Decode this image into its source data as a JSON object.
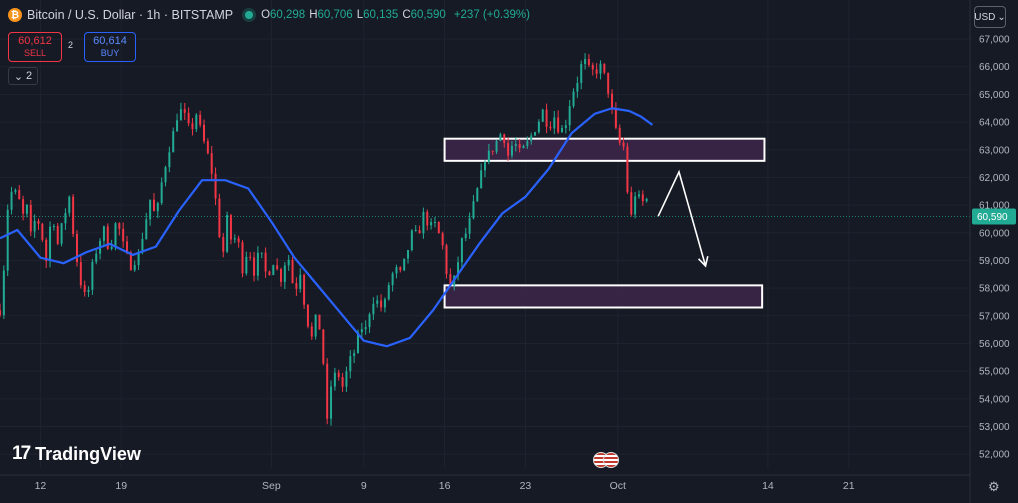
{
  "header": {
    "coin_glyph": "₿",
    "symbol": "Bitcoin / U.S. Dollar · 1h · BITSTAMP",
    "ohlc": {
      "o_label": "O",
      "o": "60,298",
      "h_label": "H",
      "h": "60,706",
      "l_label": "L",
      "l": "60,135",
      "c_label": "C",
      "c": "60,590"
    },
    "change": "+237 (+0.39%)",
    "status_color": "#22ab94"
  },
  "trade": {
    "sell_price": "60,612",
    "sell_label": "SELL",
    "spread": "2",
    "buy_price": "60,614",
    "buy_label": "BUY"
  },
  "indicators": {
    "count": "2",
    "icon": "chevron-down-icon"
  },
  "currency": {
    "label": "USD",
    "icon": "chevron-down-icon"
  },
  "logo": {
    "mark": "17",
    "text": "TradingView"
  },
  "chart_data": {
    "type": "candlestick",
    "interval": "1h",
    "y_ticks": [
      52000,
      53000,
      54000,
      55000,
      56000,
      57000,
      58000,
      59000,
      60000,
      61000,
      62000,
      63000,
      64000,
      65000,
      66000,
      67000
    ],
    "y_tick_labels": [
      "52,000",
      "53,000",
      "54,000",
      "55,000",
      "56,000",
      "57,000",
      "58,000",
      "59,000",
      "60,000",
      "61,000",
      "62,000",
      "63,000",
      "64,000",
      "65,000",
      "66,000",
      "67,000"
    ],
    "ylim": [
      51500,
      67400
    ],
    "x_ticks": [
      {
        "label": "12",
        "day": 12
      },
      {
        "label": "19",
        "day": 19
      },
      {
        "label": "Sep",
        "day": 32
      },
      {
        "label": "9",
        "day": 40
      },
      {
        "label": "16",
        "day": 47
      },
      {
        "label": "23",
        "day": 54
      },
      {
        "label": "Oct",
        "day": 62
      },
      {
        "label": "14",
        "day": 75
      },
      {
        "label": "21",
        "day": 82
      }
    ],
    "xlim": [
      8.5,
      92.5
    ],
    "last_price": 60590,
    "last_price_label": "60,590",
    "colors": {
      "up": "#22ab94",
      "down": "#f23645",
      "ma": "#2962ff",
      "zone": "#3b2548",
      "zone_border": "#ffffff",
      "annotation": "#ffffff"
    },
    "price_path": [
      [
        8.5,
        57200
      ],
      [
        9,
        59500
      ],
      [
        9.3,
        62000
      ],
      [
        9.6,
        61200
      ],
      [
        10,
        61600
      ],
      [
        10.4,
        60500
      ],
      [
        10.8,
        61000
      ],
      [
        11.2,
        59800
      ],
      [
        11.6,
        60600
      ],
      [
        12,
        60200
      ],
      [
        12.5,
        59000
      ],
      [
        13,
        60800
      ],
      [
        13.5,
        59600
      ],
      [
        14,
        60500
      ],
      [
        14.5,
        61300
      ],
      [
        15,
        59400
      ],
      [
        15.5,
        58200
      ],
      [
        16,
        57500
      ],
      [
        16.5,
        58800
      ],
      [
        17,
        59600
      ],
      [
        17.5,
        60100
      ],
      [
        18,
        59300
      ],
      [
        18.6,
        60500
      ],
      [
        19.2,
        59500
      ],
      [
        19.8,
        58800
      ],
      [
        20.5,
        59200
      ],
      [
        21,
        60200
      ],
      [
        21.5,
        61200
      ],
      [
        22,
        60500
      ],
      [
        22.5,
        61800
      ],
      [
        23,
        62800
      ],
      [
        23.5,
        63600
      ],
      [
        24,
        64500
      ],
      [
        24.5,
        64200
      ],
      [
        25,
        63600
      ],
      [
        25.5,
        64300
      ],
      [
        26,
        63500
      ],
      [
        26.5,
        62800
      ],
      [
        27,
        61900
      ],
      [
        27.4,
        60200
      ],
      [
        27.8,
        59200
      ],
      [
        28.2,
        60600
      ],
      [
        28.6,
        59500
      ],
      [
        29,
        60000
      ],
      [
        29.5,
        58700
      ],
      [
        30,
        59500
      ],
      [
        30.5,
        58600
      ],
      [
        31,
        59400
      ],
      [
        31.6,
        58400
      ],
      [
        32.2,
        59000
      ],
      [
        32.8,
        58300
      ],
      [
        33.4,
        59300
      ],
      [
        34,
        57800
      ],
      [
        34.5,
        58600
      ],
      [
        35,
        57000
      ],
      [
        35.5,
        56200
      ],
      [
        36,
        57200
      ],
      [
        36.5,
        55300
      ],
      [
        36.8,
        53000
      ],
      [
        37.2,
        54600
      ],
      [
        37.7,
        55000
      ],
      [
        38.2,
        54400
      ],
      [
        38.7,
        55300
      ],
      [
        39.2,
        55700
      ],
      [
        39.7,
        56600
      ],
      [
        40.2,
        56500
      ],
      [
        40.7,
        57600
      ],
      [
        41.2,
        57500
      ],
      [
        41.7,
        57200
      ],
      [
        42.2,
        58200
      ],
      [
        42.7,
        58700
      ],
      [
        43.2,
        58500
      ],
      [
        43.7,
        59200
      ],
      [
        44.2,
        60000
      ],
      [
        44.7,
        59900
      ],
      [
        45.2,
        60700
      ],
      [
        45.7,
        60200
      ],
      [
        46.2,
        60300
      ],
      [
        46.8,
        59600
      ],
      [
        47.2,
        58500
      ],
      [
        47.6,
        57900
      ],
      [
        48,
        58600
      ],
      [
        48.5,
        59700
      ],
      [
        49,
        60100
      ],
      [
        49.5,
        61000
      ],
      [
        50,
        61800
      ],
      [
        50.5,
        62700
      ],
      [
        51,
        62900
      ],
      [
        51.5,
        63300
      ],
      [
        52,
        63700
      ],
      [
        52.5,
        62800
      ],
      [
        53,
        63300
      ],
      [
        53.5,
        62900
      ],
      [
        54,
        63100
      ],
      [
        54.5,
        63500
      ],
      [
        55,
        63900
      ],
      [
        55.5,
        64400
      ],
      [
        56,
        63800
      ],
      [
        56.5,
        64200
      ],
      [
        57,
        63600
      ],
      [
        57.5,
        64000
      ],
      [
        58,
        65000
      ],
      [
        58.5,
        65500
      ],
      [
        59,
        66300
      ],
      [
        59.5,
        65900
      ],
      [
        60,
        65800
      ],
      [
        60.5,
        66000
      ],
      [
        61,
        65500
      ],
      [
        61.5,
        64400
      ],
      [
        62,
        63300
      ],
      [
        62.5,
        63100
      ],
      [
        62.8,
        61600
      ],
      [
        63.2,
        60500
      ],
      [
        63.6,
        61700
      ],
      [
        64,
        60900
      ],
      [
        64.4,
        61400
      ],
      [
        64.8,
        60600
      ]
    ],
    "ma_path": [
      [
        8.5,
        59800
      ],
      [
        10,
        60100
      ],
      [
        12,
        59100
      ],
      [
        14,
        58900
      ],
      [
        16,
        59300
      ],
      [
        18,
        59600
      ],
      [
        20,
        59200
      ],
      [
        22,
        59500
      ],
      [
        24,
        60800
      ],
      [
        26,
        61900
      ],
      [
        28,
        61900
      ],
      [
        30,
        61600
      ],
      [
        32,
        60400
      ],
      [
        34,
        59100
      ],
      [
        36,
        58100
      ],
      [
        38,
        57100
      ],
      [
        40,
        56100
      ],
      [
        42,
        55900
      ],
      [
        44,
        56200
      ],
      [
        46,
        57200
      ],
      [
        48,
        58400
      ],
      [
        50,
        59600
      ],
      [
        52,
        60700
      ],
      [
        54,
        61300
      ],
      [
        56,
        62300
      ],
      [
        58,
        63600
      ],
      [
        60,
        64300
      ],
      [
        61.5,
        64500
      ],
      [
        63,
        64400
      ],
      [
        64,
        64200
      ],
      [
        65,
        63900
      ]
    ],
    "zones": [
      {
        "x1": 47,
        "x2": 74.7,
        "y1": 62600,
        "y2": 63400
      },
      {
        "x1": 47,
        "x2": 74.5,
        "y1": 57300,
        "y2": 58100
      }
    ],
    "annotation_path": [
      [
        65.5,
        60600
      ],
      [
        67.3,
        62200
      ],
      [
        69.6,
        58800
      ]
    ]
  }
}
